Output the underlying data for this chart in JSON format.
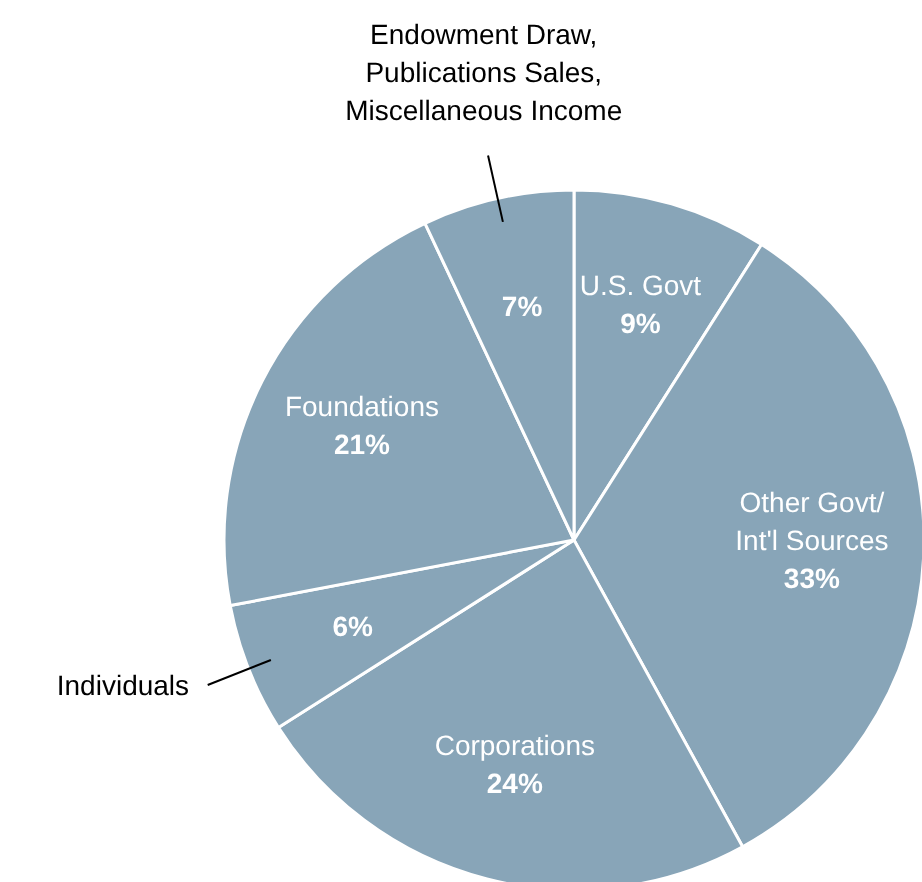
{
  "chart_data": {
    "type": "pie",
    "categories": [
      "U.S. Govt",
      "Other Govt/\nInt'l Sources",
      "Corporations",
      "Individuals",
      "Foundations",
      "Endowment Draw,\nPublications Sales,\nMiscellaneous Income"
    ],
    "values": [
      9,
      33,
      24,
      6,
      21,
      7
    ],
    "colors": [
      "#88a5b8",
      "#88a5b8",
      "#88a5b8",
      "#88a5b8",
      "#88a5b8",
      "#88a5b8"
    ],
    "value_labels": [
      "9%",
      "33%",
      "24%",
      "6%",
      "21%",
      "7%"
    ]
  }
}
